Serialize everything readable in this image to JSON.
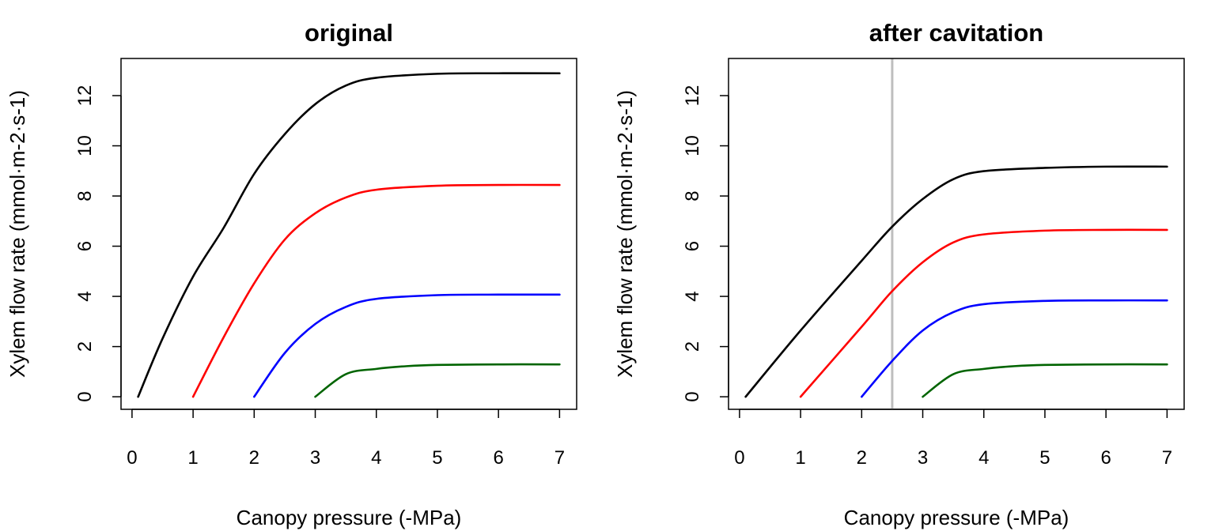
{
  "chart_data": [
    {
      "type": "line",
      "title": "original",
      "xlabel": "Canopy pressure (-MPa)",
      "ylabel": "Xylem flow rate (mmol·m-2·s-1)",
      "xlim": [
        -0.18,
        7.28
      ],
      "ylim": [
        -0.5,
        13.48
      ],
      "xticks": [
        0,
        1,
        2,
        3,
        4,
        5,
        6,
        7
      ],
      "yticks": [
        0,
        2,
        4,
        6,
        8,
        10,
        12
      ],
      "grid": false,
      "series": [
        {
          "color": "#000000",
          "x": [
            0.1,
            0.5,
            1,
            1.5,
            2,
            2.5,
            3,
            3.5,
            4,
            5,
            6,
            7
          ],
          "y": [
            0,
            2.32,
            4.79,
            6.73,
            8.88,
            10.46,
            11.66,
            12.4,
            12.71,
            12.87,
            12.89,
            12.89
          ]
        },
        {
          "color": "#ff0000",
          "x": [
            1,
            1.5,
            2,
            2.5,
            3,
            3.5,
            4,
            5,
            6,
            7
          ],
          "y": [
            0,
            2.37,
            4.52,
            6.26,
            7.31,
            7.94,
            8.25,
            8.41,
            8.44,
            8.44
          ]
        },
        {
          "color": "#0000ff",
          "x": [
            2,
            2.5,
            3,
            3.5,
            4,
            5,
            6,
            7
          ],
          "y": [
            0,
            1.74,
            2.9,
            3.58,
            3.9,
            4.05,
            4.07,
            4.07
          ]
        },
        {
          "color": "#006400",
          "x": [
            3,
            3.5,
            4,
            4.5,
            5,
            6,
            7
          ],
          "y": [
            0,
            0.9,
            1.11,
            1.22,
            1.27,
            1.29,
            1.29
          ]
        }
      ]
    },
    {
      "type": "line",
      "title": "after cavitation",
      "xlabel": "Canopy pressure (-MPa)",
      "ylabel": "Xylem flow rate (mmol·m-2·s-1)",
      "xlim": [
        -0.18,
        7.28
      ],
      "ylim": [
        -0.5,
        13.48
      ],
      "xticks": [
        0,
        1,
        2,
        3,
        4,
        5,
        6,
        7
      ],
      "yticks": [
        0,
        2,
        4,
        6,
        8,
        10,
        12
      ],
      "grid": false,
      "vline": {
        "x": 2.5,
        "color": "#bebebe"
      },
      "series": [
        {
          "color": "#000000",
          "x": [
            0.1,
            1,
            2,
            2.5,
            3,
            3.5,
            4,
            5,
            6,
            7
          ],
          "y": [
            0,
            2.64,
            5.42,
            6.78,
            7.88,
            8.67,
            8.99,
            9.12,
            9.17,
            9.17
          ]
        },
        {
          "color": "#ff0000",
          "x": [
            1,
            2,
            2.5,
            3,
            3.5,
            4,
            5,
            6,
            7
          ],
          "y": [
            0,
            2.79,
            4.21,
            5.36,
            6.15,
            6.47,
            6.62,
            6.65,
            6.65
          ]
        },
        {
          "color": "#0000ff",
          "x": [
            2,
            2.5,
            3,
            3.5,
            4,
            5,
            6,
            7
          ],
          "y": [
            0,
            1.43,
            2.64,
            3.37,
            3.69,
            3.82,
            3.84,
            3.84
          ]
        },
        {
          "color": "#006400",
          "x": [
            3,
            3.5,
            4,
            4.5,
            5,
            6,
            7
          ],
          "y": [
            0,
            0.9,
            1.11,
            1.22,
            1.27,
            1.29,
            1.29
          ]
        }
      ]
    }
  ]
}
